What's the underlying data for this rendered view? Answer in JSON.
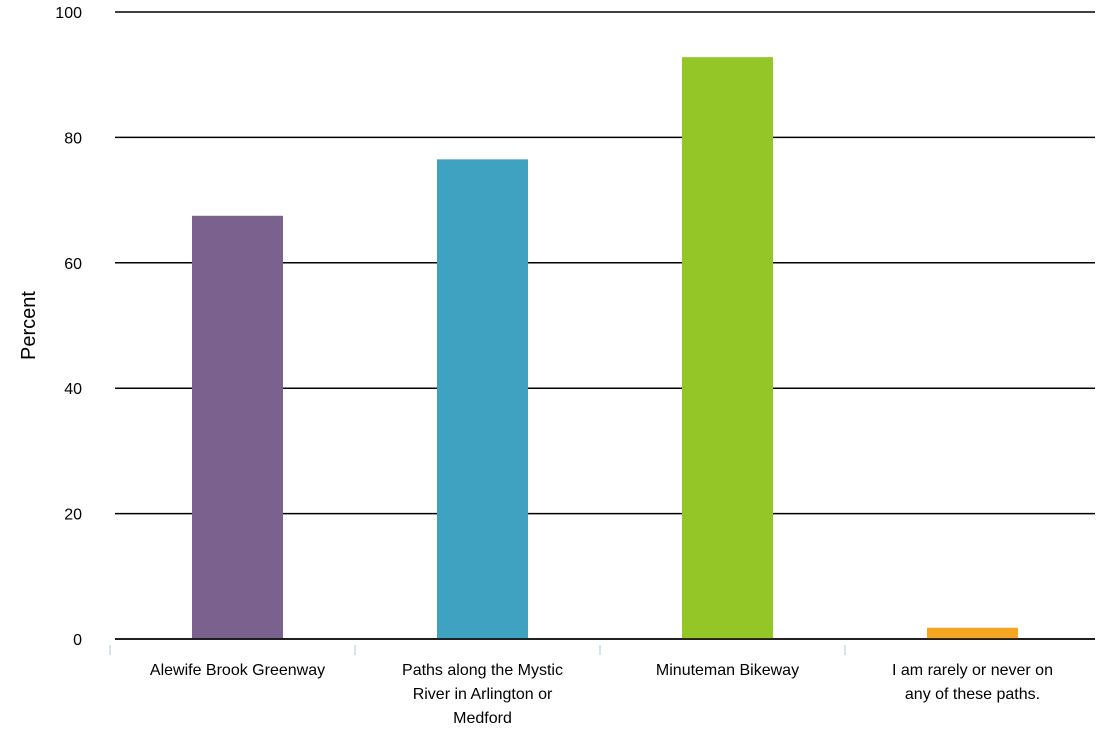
{
  "chart_data": {
    "type": "bar",
    "categories": [
      [
        "Alewife Brook Greenway"
      ],
      [
        "Paths along the Mystic",
        "River in Arlington or",
        "Medford"
      ],
      [
        "Minuteman Bikeway"
      ],
      [
        "I am rarely or never on",
        "any of these paths."
      ]
    ],
    "values": [
      67.5,
      76.5,
      92.8,
      1.8
    ],
    "colors": [
      "#7b618e",
      "#3fa2c1",
      "#95c628",
      "#f5a623"
    ],
    "ylabel": "Percent",
    "ylim": [
      0,
      100
    ],
    "yticks": [
      0,
      20,
      40,
      60,
      80,
      100
    ],
    "grid": true,
    "legend": "none"
  }
}
